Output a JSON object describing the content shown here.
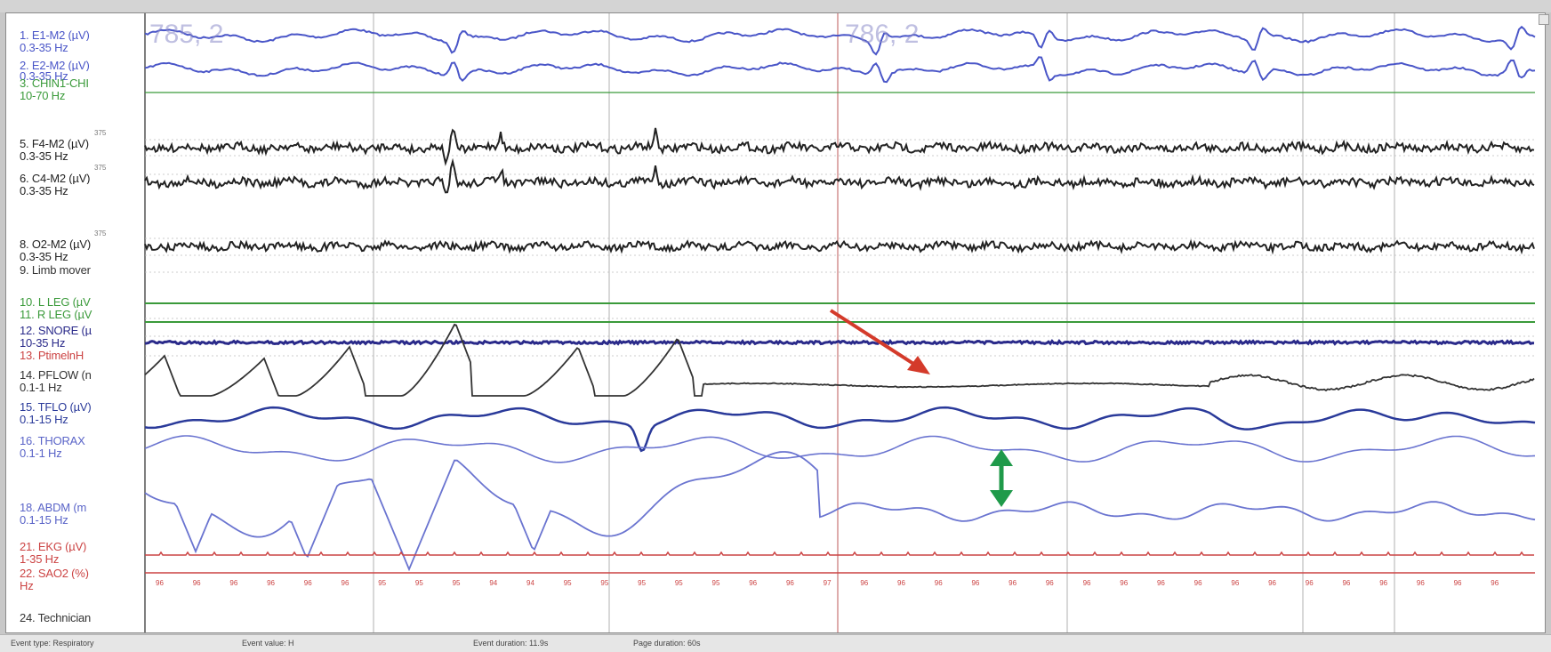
{
  "epochs": {
    "left": "785, 2",
    "right": "786, 2"
  },
  "channels": [
    {
      "label": "1. E1-M2 (µV)",
      "sub": "0.3-35 Hz",
      "color": "#4a56c8"
    },
    {
      "label": "2. E2-M2 (µV)",
      "sub": "0.3-35 Hz",
      "color": "#4a56c8"
    },
    {
      "label": "3. CHIN1-CHI",
      "sub": "10-70 Hz",
      "color": "#3a9a3a"
    },
    {
      "label": "5. F4-M2 (µV)",
      "sub": "0.3-35 Hz",
      "color": "#222222"
    },
    {
      "label": "6. C4-M2 (µV)",
      "sub": "0.3-35 Hz",
      "color": "#222222"
    },
    {
      "label": "8. O2-M2 (µV)",
      "sub": "0.3-35 Hz",
      "color": "#222222"
    },
    {
      "label": "9. Limb mover",
      "sub": "",
      "color": "#333333"
    },
    {
      "label": "10. L LEG (µV",
      "sub": "",
      "color": "#3a9a3a"
    },
    {
      "label": "11. R LEG (µV",
      "sub": "",
      "color": "#3a9a3a"
    },
    {
      "label": "12. SNORE (µ",
      "sub": "10-35 Hz",
      "color": "#2a2a8a"
    },
    {
      "label": "13. PtimelnH",
      "sub": "",
      "color": "#cc4444"
    },
    {
      "label": "14. PFLOW (n",
      "sub": "0.1-1 Hz",
      "color": "#333333"
    },
    {
      "label": "15. TFLO (µV)",
      "sub": "0.1-15 Hz",
      "color": "#2a3a9a"
    },
    {
      "label": "16. THORAX",
      "sub": "0.1-1 Hz",
      "color": "#5a64c8"
    },
    {
      "label": "18. ABDM (m",
      "sub": "0.1-15 Hz",
      "color": "#5a64c8"
    },
    {
      "label": "21. EKG (µV)",
      "sub": "1-35 Hz",
      "color": "#cc4444"
    },
    {
      "label": "22. SAO2 (%)",
      "sub": "Hz",
      "color": "#cc4444"
    },
    {
      "label": "24. Technician",
      "sub": "",
      "color": "#333333"
    }
  ],
  "scale_marker": "375",
  "spo2_values": [
    "96",
    "96",
    "96",
    "96",
    "96",
    "96",
    "95",
    "95",
    "95",
    "94",
    "94",
    "95",
    "95",
    "95",
    "95",
    "95",
    "96",
    "96",
    "97",
    "96",
    "96",
    "96",
    "96",
    "96",
    "96",
    "96",
    "96",
    "96",
    "96",
    "96",
    "96",
    "96",
    "96",
    "96",
    "96",
    "96",
    "96"
  ],
  "status": {
    "event_type": "Event type: Respiratory",
    "event_value": "Event value: H",
    "event_duration": "Event duration: 11.9s",
    "page_duration": "Page duration: 60s"
  },
  "colors": {
    "annotation_arrow": "#d43a2a",
    "amplitude_arrow": "#1f9a4a",
    "epoch_line": "#d49090",
    "grid_line": "#b0b0b0"
  }
}
